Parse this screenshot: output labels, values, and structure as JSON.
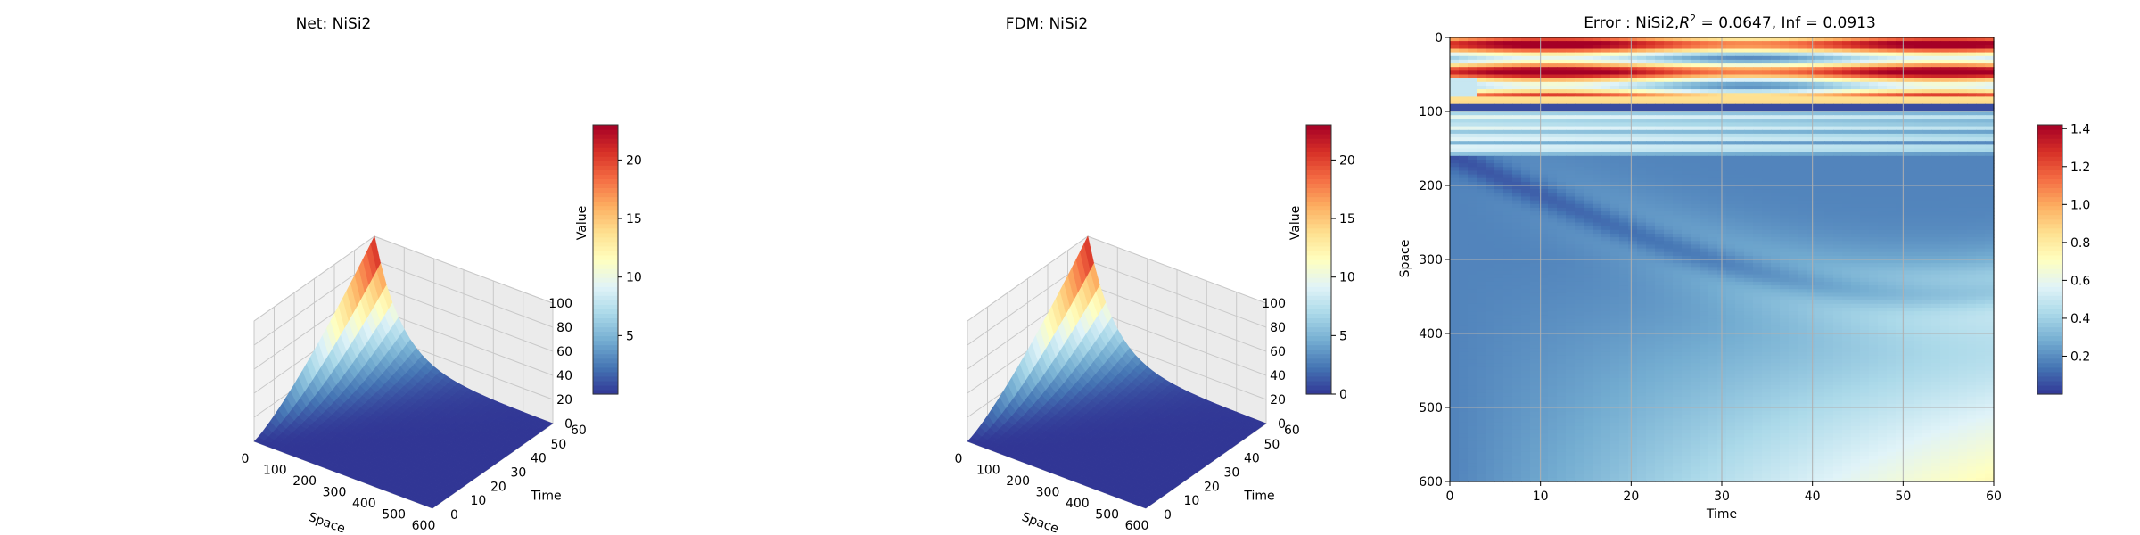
{
  "panels": [
    {
      "title": "Net: NiSi2",
      "chart_data": {
        "type": "surface3d",
        "title": "Net: NiSi2",
        "xlabel": "Space",
        "ylabel": "Time",
        "zlabel": "",
        "xlim": [
          0,
          600
        ],
        "ylim": [
          0,
          60
        ],
        "zlim": [
          0,
          100
        ],
        "xticks": [
          "0",
          "100",
          "200",
          "300",
          "400",
          "500",
          "600"
        ],
        "yticks": [
          "0",
          "10",
          "20",
          "30",
          "40",
          "50",
          "60"
        ],
        "zticks": [
          "0",
          "20",
          "40",
          "60",
          "80",
          "100"
        ],
        "peak_value": 23,
        "peak_at": {
          "space": 0,
          "time": 60
        },
        "grid": true,
        "colorbar": {
          "label": "Value",
          "range": [
            0,
            23
          ],
          "ticks": [
            "5",
            "10",
            "15",
            "20"
          ],
          "colormap": "RdYlBu_r"
        }
      }
    },
    {
      "title": "FDM: NiSi2",
      "chart_data": {
        "type": "surface3d",
        "title": "FDM: NiSi2",
        "xlabel": "Space",
        "ylabel": "Time",
        "zlabel": "",
        "xlim": [
          0,
          600
        ],
        "ylim": [
          0,
          60
        ],
        "zlim": [
          0,
          100
        ],
        "xticks": [
          "0",
          "100",
          "200",
          "300",
          "400",
          "500",
          "600"
        ],
        "yticks": [
          "0",
          "10",
          "20",
          "30",
          "40",
          "50",
          "60"
        ],
        "zticks": [
          "0",
          "20",
          "40",
          "60",
          "80",
          "100"
        ],
        "peak_value": 23,
        "peak_at": {
          "space": 0,
          "time": 60
        },
        "grid": true,
        "colorbar": {
          "label": "Value",
          "range": [
            0,
            23
          ],
          "ticks": [
            "0",
            "5",
            "10",
            "15",
            "20"
          ],
          "colormap": "RdYlBu_r"
        }
      }
    },
    {
      "title_prefix": "Error : NiSi2,",
      "title_r": "R",
      "title_exp": "2",
      "title_suffix": " = 0.0647, Inf = 0.0913",
      "chart_data": {
        "type": "heatmap",
        "xlabel": "Time",
        "ylabel": "Space",
        "xlim": [
          0,
          60
        ],
        "ylim": [
          600,
          0
        ],
        "xticks": [
          "0",
          "10",
          "20",
          "30",
          "40",
          "50",
          "60"
        ],
        "yticks": [
          "0",
          "100",
          "200",
          "300",
          "400",
          "500",
          "600"
        ],
        "r2": 0.0647,
        "inf_norm": 0.0913,
        "grid": true,
        "colorbar": {
          "label": "",
          "range": [
            0,
            1.42
          ],
          "ticks": [
            "0.2",
            "0.4",
            "0.6",
            "0.8",
            "1.0",
            "1.2",
            "1.4"
          ],
          "colormap": "RdYlBu_r"
        }
      }
    }
  ]
}
